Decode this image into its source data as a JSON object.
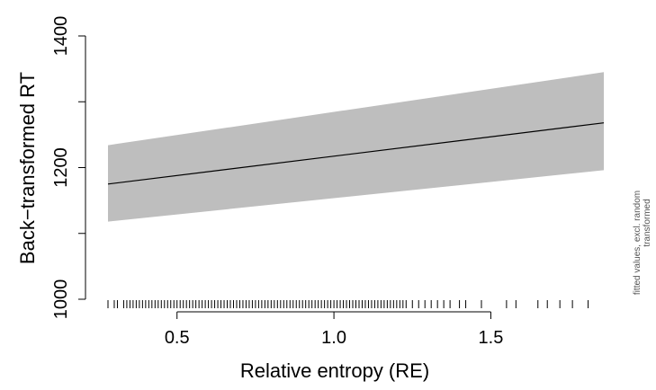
{
  "chart_data": {
    "type": "line",
    "xlabel": "Relative entropy (RE)",
    "ylabel": "Back−transformed RT",
    "side_note": [
      "fitted values, excl. random",
      "transformed"
    ],
    "xlim": [
      0.28,
      1.86
    ],
    "ylim": [
      1000,
      1400
    ],
    "x_ticks": [
      0.5,
      1.0,
      1.5
    ],
    "x_tick_labels": [
      "0.5",
      "1.0",
      "1.5"
    ],
    "y_ticks": [
      1000,
      1200,
      1400
    ],
    "y_minor_ticks": [
      1100,
      1300
    ],
    "y_tick_labels": [
      "1000",
      "1200",
      "1400"
    ],
    "grid": false,
    "colors": {
      "band": "#bebebe",
      "line": "#000000"
    },
    "series": [
      {
        "x": [
          0.28,
          1.86
        ],
        "fit": [
          1175,
          1268
        ],
        "lower": [
          1118,
          1196
        ],
        "upper": [
          1234,
          1345
        ]
      }
    ],
    "rug": [
      0.28,
      0.3,
      0.31,
      0.33,
      0.34,
      0.35,
      0.36,
      0.37,
      0.38,
      0.39,
      0.4,
      0.41,
      0.42,
      0.43,
      0.44,
      0.45,
      0.46,
      0.47,
      0.48,
      0.49,
      0.5,
      0.51,
      0.52,
      0.53,
      0.54,
      0.55,
      0.56,
      0.57,
      0.58,
      0.59,
      0.6,
      0.61,
      0.62,
      0.63,
      0.64,
      0.65,
      0.66,
      0.67,
      0.68,
      0.69,
      0.7,
      0.71,
      0.72,
      0.73,
      0.74,
      0.75,
      0.76,
      0.77,
      0.78,
      0.79,
      0.8,
      0.81,
      0.82,
      0.83,
      0.84,
      0.85,
      0.86,
      0.87,
      0.88,
      0.89,
      0.9,
      0.91,
      0.92,
      0.93,
      0.94,
      0.95,
      0.96,
      0.97,
      0.98,
      0.99,
      1.0,
      1.01,
      1.02,
      1.03,
      1.04,
      1.05,
      1.06,
      1.07,
      1.08,
      1.09,
      1.1,
      1.11,
      1.12,
      1.13,
      1.14,
      1.15,
      1.16,
      1.17,
      1.18,
      1.19,
      1.2,
      1.21,
      1.22,
      1.23,
      1.25,
      1.27,
      1.29,
      1.31,
      1.33,
      1.35,
      1.37,
      1.4,
      1.42,
      1.47,
      1.55,
      1.58,
      1.65,
      1.68,
      1.72,
      1.76,
      1.81
    ]
  }
}
